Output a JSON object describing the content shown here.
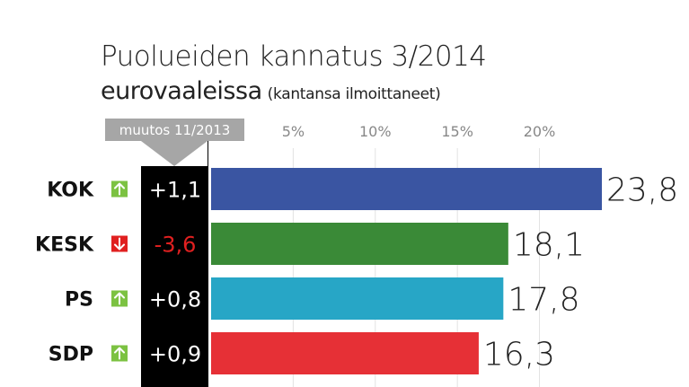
{
  "chart_data": {
    "type": "bar",
    "orientation": "horizontal",
    "title": "Puolueiden kannatus 3/2014",
    "subtitle": "eurovaaleissa",
    "subtitle_note": "(kantansa ilmoittaneet)",
    "change_column_label": "muutos 11/2013",
    "categories": [
      "KOK",
      "KESK",
      "PS",
      "SDP"
    ],
    "values": [
      23.8,
      18.1,
      17.8,
      16.3
    ],
    "value_labels": [
      "23,8",
      "18,1",
      "17,8",
      "16,3"
    ],
    "changes": [
      1.1,
      -3.6,
      0.8,
      0.9
    ],
    "change_labels": [
      "+1,1",
      "-3,6",
      "+0,8",
      "+0,9"
    ],
    "trend": [
      "up",
      "down",
      "up",
      "up"
    ],
    "bar_colors": [
      "#3a55a2",
      "#3a8a37",
      "#27a6c6",
      "#e63036"
    ],
    "trend_colors": {
      "up": "#7cc242",
      "down": "#e02020"
    },
    "change_colors": {
      "up": "#ffffff",
      "down": "#e02020"
    },
    "xticks": [
      5,
      10,
      15,
      20
    ],
    "xtick_labels": [
      "5%",
      "10%",
      "15%",
      "20%"
    ],
    "xlim": [
      0,
      23.8
    ],
    "grid": true
  }
}
